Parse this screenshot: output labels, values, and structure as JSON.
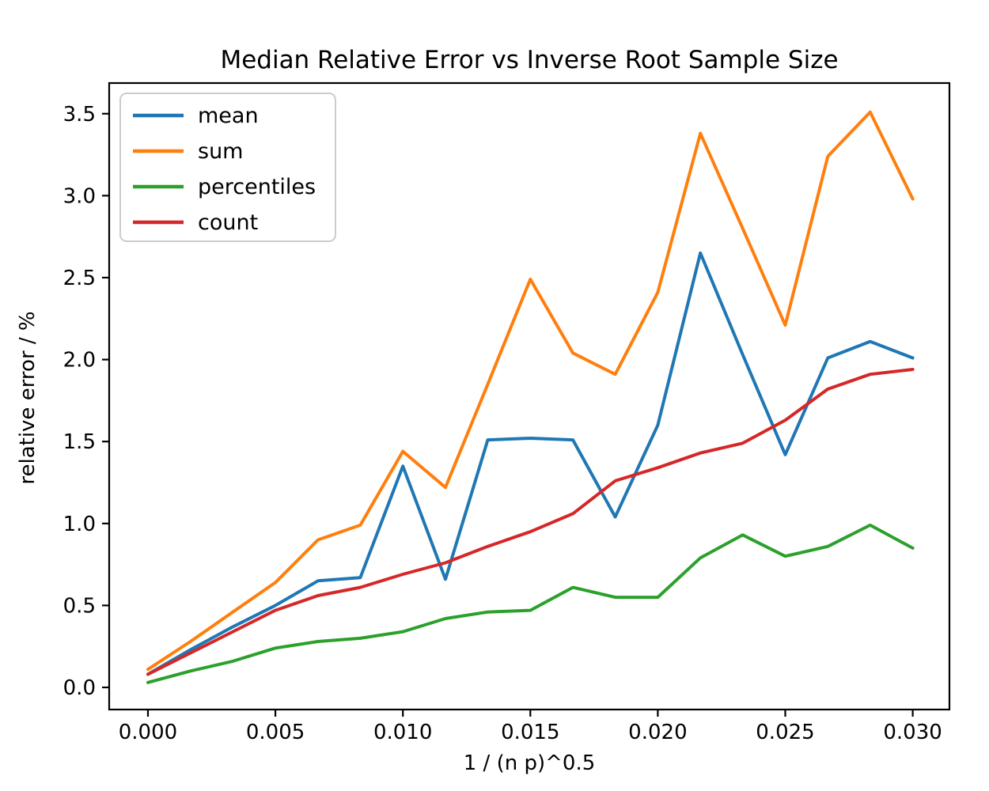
{
  "chart_data": {
    "type": "line",
    "title": "Median Relative Error vs Inverse Root Sample Size",
    "xlabel": "1 / (n p)^0.5",
    "ylabel": "relative error / %",
    "x": [
      0.0,
      0.00167,
      0.00333,
      0.005,
      0.00667,
      0.00833,
      0.01,
      0.01167,
      0.01333,
      0.015,
      0.01667,
      0.01833,
      0.02,
      0.02167,
      0.02333,
      0.025,
      0.02667,
      0.02833,
      0.03
    ],
    "series": [
      {
        "name": "mean",
        "color": "#1f77b4",
        "values": [
          0.08,
          0.23,
          0.37,
          0.5,
          0.65,
          0.67,
          1.35,
          0.66,
          1.51,
          1.52,
          1.51,
          1.04,
          1.6,
          2.65,
          2.03,
          1.42,
          2.01,
          2.11,
          2.01
        ]
      },
      {
        "name": "sum",
        "color": "#ff7f0e",
        "values": [
          0.11,
          0.28,
          0.46,
          0.64,
          0.9,
          0.99,
          1.44,
          1.22,
          1.85,
          2.49,
          2.04,
          1.91,
          2.41,
          3.38,
          2.8,
          2.21,
          3.24,
          3.51,
          2.98
        ]
      },
      {
        "name": "percentiles",
        "color": "#2ca02c",
        "values": [
          0.03,
          0.1,
          0.16,
          0.24,
          0.28,
          0.3,
          0.34,
          0.42,
          0.46,
          0.47,
          0.61,
          0.55,
          0.55,
          0.79,
          0.93,
          0.8,
          0.86,
          0.99,
          0.85
        ]
      },
      {
        "name": "count",
        "color": "#d62728",
        "values": [
          0.08,
          0.21,
          0.34,
          0.47,
          0.56,
          0.61,
          0.69,
          0.76,
          0.86,
          0.95,
          1.06,
          1.26,
          1.34,
          1.43,
          1.49,
          1.63,
          1.82,
          1.91,
          1.94
        ]
      }
    ],
    "xlim": [
      -0.00152,
      0.03144
    ],
    "ylim": [
      -0.135,
      3.687
    ],
    "xticks": {
      "values": [
        0.0,
        0.005,
        0.01,
        0.015,
        0.02,
        0.025,
        0.03
      ],
      "labels": [
        "0.000",
        "0.005",
        "0.010",
        "0.015",
        "0.020",
        "0.025",
        "0.030"
      ]
    },
    "yticks": {
      "values": [
        0.0,
        0.5,
        1.0,
        1.5,
        2.0,
        2.5,
        3.0,
        3.5
      ],
      "labels": [
        "0.0",
        "0.5",
        "1.0",
        "1.5",
        "2.0",
        "2.5",
        "3.0",
        "3.5"
      ]
    },
    "legend": {
      "position": "upper left",
      "entries": [
        "mean",
        "sum",
        "percentiles",
        "count"
      ]
    },
    "grid": false,
    "frame_color": "#000000",
    "legend_border_color": "#cccccc"
  }
}
